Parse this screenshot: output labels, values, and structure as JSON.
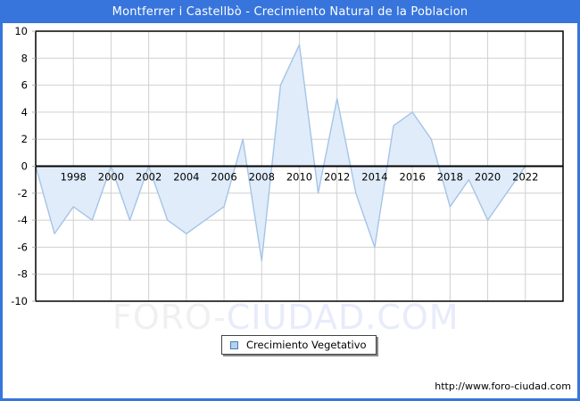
{
  "window": {
    "title": "Montferrer i Castellbò - Crecimiento Natural de la Poblacion",
    "title_bar_color": "#3775dc",
    "frame_border_color": "#3775dc"
  },
  "chart_data": {
    "type": "area",
    "title": "Montferrer i Castellbò - Crecimiento Natural de la Poblacion",
    "series": [
      {
        "name": "Crecimiento Vegetativo",
        "x": [
          1996,
          1997,
          1998,
          1999,
          2000,
          2001,
          2002,
          2003,
          2004,
          2005,
          2006,
          2007,
          2008,
          2009,
          2010,
          2011,
          2012,
          2013,
          2014,
          2015,
          2016,
          2017,
          2018,
          2019,
          2020,
          2021,
          2022
        ],
        "values": [
          0,
          -5,
          -3,
          -4,
          0,
          -4,
          0,
          -4,
          -5,
          -4,
          -3,
          2,
          -7,
          6,
          9,
          -2,
          5,
          -2,
          -6,
          3,
          4,
          2,
          -3,
          -1,
          -4,
          -2,
          0
        ]
      }
    ],
    "xlabel": "",
    "ylabel": "",
    "x_range": [
      1996,
      2024
    ],
    "ylim": [
      -10,
      10
    ],
    "yticks": [
      -10,
      -8,
      -6,
      -4,
      -2,
      0,
      2,
      4,
      6,
      8,
      10
    ],
    "xticks": [
      1998,
      2000,
      2002,
      2004,
      2006,
      2008,
      2010,
      2012,
      2014,
      2016,
      2018,
      2020,
      2022
    ],
    "grid": true,
    "legend_position": "bottom-center",
    "grid_color": "#d0d0d0",
    "fill_color": "#e0ecfa",
    "line_color": "#a5c4e6",
    "zero_axis_color": "#000000",
    "border_color": "#000000"
  },
  "legend": {
    "label": "Crecimiento Vegetativo",
    "swatch_fill": "#b4d2ee",
    "swatch_border": "#4a7ebb"
  },
  "watermark": {
    "part1": "FORO-",
    "part2": "CIUDAD.COM"
  },
  "footer": {
    "url": "http://www.foro-ciudad.com"
  }
}
